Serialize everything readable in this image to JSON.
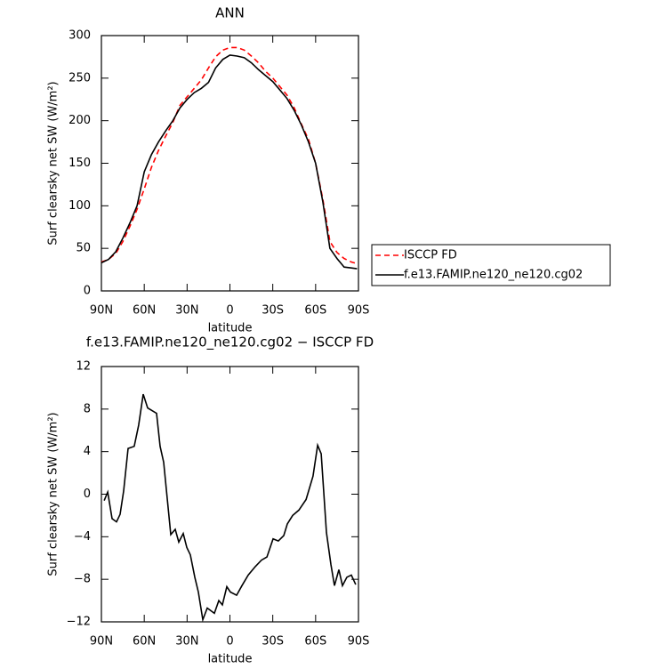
{
  "chart_data": [
    {
      "type": "line",
      "title": "ANN",
      "x_label": "latitude",
      "y_label": "Surf clearsky net SW (W/m²)",
      "x": [
        90,
        85,
        80,
        75,
        70,
        65,
        60,
        55,
        50,
        45,
        40,
        35,
        30,
        25,
        20,
        15,
        10,
        5,
        0,
        -5,
        -10,
        -15,
        -20,
        -25,
        -30,
        -35,
        -40,
        -45,
        -50,
        -55,
        -60,
        -65,
        -70,
        -75,
        -80,
        -85,
        -89
      ],
      "series": [
        {
          "name": "ISCCP FD",
          "color": "#ff0000",
          "linestyle": "dashed",
          "values": [
            34,
            37,
            44,
            58,
            76,
            96,
            120,
            145,
            165,
            182,
            198,
            218,
            228,
            238,
            248,
            262,
            275,
            283,
            286,
            286,
            283,
            276,
            268,
            258,
            250,
            240,
            230,
            215,
            196,
            178,
            150,
            108,
            58,
            45,
            38,
            34,
            32
          ]
        },
        {
          "name": "f.e13.FAMIP.ne120_ne120.cg02",
          "color": "#000000",
          "linestyle": "solid",
          "values": [
            33,
            37,
            46,
            62,
            80,
            100,
            140,
            160,
            175,
            188,
            200,
            215,
            225,
            233,
            238,
            245,
            262,
            272,
            277,
            276,
            274,
            268,
            260,
            253,
            246,
            236,
            226,
            212,
            195,
            175,
            150,
            105,
            50,
            38,
            28,
            27,
            26
          ]
        }
      ],
      "xlim": [
        90,
        -90
      ],
      "xticks": [
        {
          "value": 90,
          "label": "90N"
        },
        {
          "value": 60,
          "label": "60N"
        },
        {
          "value": 30,
          "label": "30N"
        },
        0,
        {
          "value": -30,
          "label": "30S"
        },
        {
          "value": -60,
          "label": "60S"
        },
        {
          "value": -90,
          "label": "90S"
        }
      ],
      "ylim": [
        0,
        300
      ],
      "yticks": [
        0,
        50,
        100,
        150,
        200,
        250,
        300
      ],
      "legend": "outside-right",
      "grid": false
    },
    {
      "type": "line",
      "title": "f.e13.FAMIP.ne120_ne120.cg02 − ISCCP FD",
      "x_label": "latitude",
      "y_label": "Surf clearsky net SW (W/m²)",
      "color": "#000000",
      "x": [
        88.1,
        85.6,
        82.5,
        79.4,
        76.9,
        74.4,
        71.3,
        67.0,
        63.9,
        60.7,
        57.6,
        51.4,
        48.9,
        46.4,
        41.4,
        38.3,
        35.8,
        32.7,
        30.2,
        27.7,
        24.6,
        22.1,
        19.0,
        15.9,
        10.9,
        7.8,
        5.3,
        2.2,
        -0.3,
        -4.7,
        -8.4,
        -12.8,
        -17.8,
        -22.1,
        -25.9,
        -30.2,
        -33.9,
        -37.7,
        -40.2,
        -43.9,
        -48.3,
        -53.3,
        -58.2,
        -61.4,
        -63.9,
        -67.6,
        -70.7,
        -73.2,
        -76.3,
        -78.8,
        -81.9,
        -85.0,
        -88.1
      ],
      "values": [
        -0.6,
        0.2,
        -2.3,
        -2.6,
        -1.9,
        0.3,
        4.3,
        4.5,
        6.5,
        9.4,
        8.1,
        7.6,
        4.5,
        3.0,
        -3.8,
        -3.3,
        -4.5,
        -3.7,
        -5.0,
        -5.7,
        -7.8,
        -9.2,
        -11.8,
        -10.7,
        -11.2,
        -10.0,
        -10.4,
        -8.7,
        -9.2,
        -9.5,
        -8.6,
        -7.6,
        -6.8,
        -6.2,
        -5.9,
        -4.2,
        -4.4,
        -3.9,
        -2.8,
        -2.0,
        -1.5,
        -0.5,
        1.7,
        4.6,
        3.8,
        -3.6,
        -6.6,
        -8.6,
        -7.1,
        -8.6,
        -7.8,
        -7.6,
        -8.5
      ],
      "xlim": [
        90,
        -90
      ],
      "xticks": [
        {
          "value": 90,
          "label": "90N"
        },
        {
          "value": 60,
          "label": "60N"
        },
        {
          "value": 30,
          "label": "30N"
        },
        0,
        {
          "value": -30,
          "label": "30S"
        },
        {
          "value": -60,
          "label": "60S"
        },
        {
          "value": -90,
          "label": "90S"
        }
      ],
      "ylim": [
        -12,
        12
      ],
      "yticks": [
        {
          "value": -12,
          "label": "−12"
        },
        {
          "value": -8,
          "label": "−8"
        },
        {
          "value": -4,
          "label": "−4"
        },
        0,
        4,
        8,
        12
      ],
      "grid": false
    }
  ]
}
